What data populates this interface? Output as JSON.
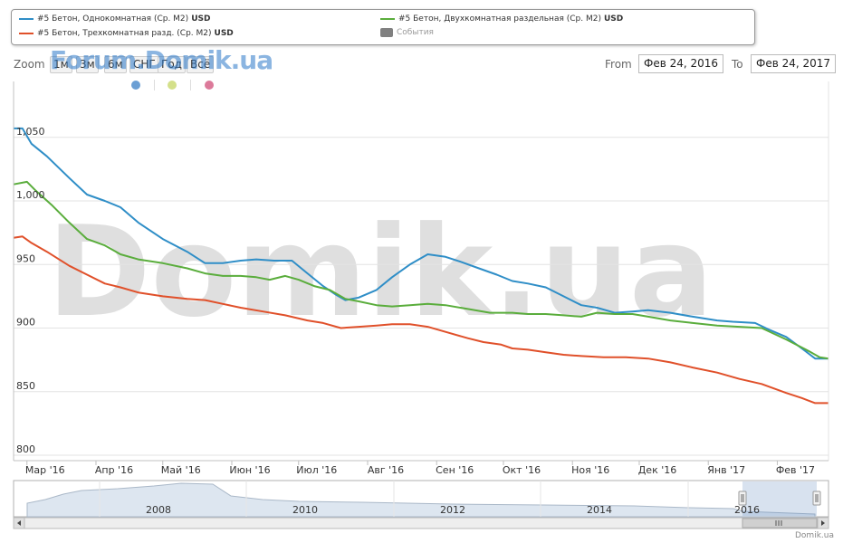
{
  "legend": {
    "items": [
      {
        "label": "#5 Бетон, Однокомнатная (Ср. М2)",
        "unit": "USD",
        "color": "#2f8ec7"
      },
      {
        "label": "#5 Бетон, Двухкомнатная раздельная (Ср. М2)",
        "unit": "USD",
        "color": "#5aad3c"
      },
      {
        "label": "#5 Бетон, Трехкомнатная разд. (Ср. М2)",
        "unit": "USD",
        "color": "#e0502a"
      },
      {
        "label": "События",
        "unit": "",
        "color": "#808080"
      }
    ]
  },
  "toolbar": {
    "zoom_label": "Zoom",
    "zoom_buttons": [
      "1м",
      "3м",
      "6м",
      "СНГ",
      "Год",
      "Всё"
    ],
    "from_label": "From",
    "from_value": "Фев 24, 2016",
    "to_label": "To",
    "to_value": "Фев 24, 2017"
  },
  "watermarks": {
    "top": "Forum.Domik.ua",
    "center": "Domik.ua"
  },
  "brand": "Domik.ua",
  "event_dot_colors": [
    "#6b9fd4",
    "#d4e08a",
    "#dc7a9a"
  ],
  "chart_data": {
    "type": "line",
    "x_labels": [
      "Мар '16",
      "Апр '16",
      "Май '16",
      "Июн '16",
      "Июл '16",
      "Авг '16",
      "Сен '16",
      "Окт '16",
      "Ноя '16",
      "Дек '16",
      "Янв '17",
      "Фев '17"
    ],
    "x_range": [
      "2016-02-24",
      "2017-02-24"
    ],
    "ylim": [
      800,
      1100
    ],
    "y_ticks": [
      800,
      850,
      900,
      950,
      1000,
      1050
    ],
    "y_tick_labels": [
      "800",
      "850",
      "900",
      "950",
      "1,000",
      "1,050"
    ],
    "grid": true,
    "series": [
      {
        "name": "#5 Бетон, Однокомнатная (Ср. М2)",
        "color": "#2f8ec7",
        "points": [
          [
            "2016-02-24",
            1057
          ],
          [
            "2016-02-28",
            1057
          ],
          [
            "2016-03-03",
            1045
          ],
          [
            "2016-03-10",
            1035
          ],
          [
            "2016-03-20",
            1018
          ],
          [
            "2016-03-28",
            1005
          ],
          [
            "2016-04-05",
            1000
          ],
          [
            "2016-04-12",
            995
          ],
          [
            "2016-04-20",
            983
          ],
          [
            "2016-05-01",
            970
          ],
          [
            "2016-05-12",
            960
          ],
          [
            "2016-05-20",
            951
          ],
          [
            "2016-05-28",
            951
          ],
          [
            "2016-06-05",
            953
          ],
          [
            "2016-06-12",
            954
          ],
          [
            "2016-06-20",
            953
          ],
          [
            "2016-06-28",
            953
          ],
          [
            "2016-07-05",
            943
          ],
          [
            "2016-07-12",
            933
          ],
          [
            "2016-07-18",
            926
          ],
          [
            "2016-07-22",
            922
          ],
          [
            "2016-07-28",
            924
          ],
          [
            "2016-08-05",
            930
          ],
          [
            "2016-08-12",
            940
          ],
          [
            "2016-08-20",
            950
          ],
          [
            "2016-08-28",
            958
          ],
          [
            "2016-09-05",
            956
          ],
          [
            "2016-09-12",
            952
          ],
          [
            "2016-09-20",
            947
          ],
          [
            "2016-09-28",
            942
          ],
          [
            "2016-10-05",
            937
          ],
          [
            "2016-10-12",
            935
          ],
          [
            "2016-10-20",
            932
          ],
          [
            "2016-10-28",
            925
          ],
          [
            "2016-11-05",
            918
          ],
          [
            "2016-11-12",
            916
          ],
          [
            "2016-11-20",
            912
          ],
          [
            "2016-11-28",
            913
          ],
          [
            "2016-12-05",
            914
          ],
          [
            "2016-12-15",
            912
          ],
          [
            "2016-12-25",
            909
          ],
          [
            "2017-01-05",
            906
          ],
          [
            "2017-01-12",
            905
          ],
          [
            "2017-01-22",
            904
          ],
          [
            "2017-01-28",
            899
          ],
          [
            "2017-02-05",
            893
          ],
          [
            "2017-02-12",
            884
          ],
          [
            "2017-02-18",
            876
          ],
          [
            "2017-02-24",
            876
          ]
        ]
      },
      {
        "name": "#5 Бетон, Двухкомнатная раздельная (Ср. М2)",
        "color": "#5aad3c",
        "points": [
          [
            "2016-02-24",
            1013
          ],
          [
            "2016-03-01",
            1015
          ],
          [
            "2016-03-05",
            1008
          ],
          [
            "2016-03-12",
            997
          ],
          [
            "2016-03-20",
            983
          ],
          [
            "2016-03-28",
            970
          ],
          [
            "2016-04-05",
            965
          ],
          [
            "2016-04-12",
            958
          ],
          [
            "2016-04-20",
            954
          ],
          [
            "2016-05-01",
            951
          ],
          [
            "2016-05-12",
            947
          ],
          [
            "2016-05-20",
            943
          ],
          [
            "2016-05-28",
            941
          ],
          [
            "2016-06-05",
            941
          ],
          [
            "2016-06-12",
            940
          ],
          [
            "2016-06-18",
            938
          ],
          [
            "2016-06-25",
            941
          ],
          [
            "2016-07-01",
            938
          ],
          [
            "2016-07-08",
            933
          ],
          [
            "2016-07-15",
            930
          ],
          [
            "2016-07-22",
            923
          ],
          [
            "2016-07-28",
            921
          ],
          [
            "2016-08-05",
            918
          ],
          [
            "2016-08-12",
            917
          ],
          [
            "2016-08-20",
            918
          ],
          [
            "2016-08-28",
            919
          ],
          [
            "2016-09-05",
            918
          ],
          [
            "2016-09-15",
            915
          ],
          [
            "2016-09-25",
            912
          ],
          [
            "2016-10-05",
            912
          ],
          [
            "2016-10-12",
            911
          ],
          [
            "2016-10-20",
            911
          ],
          [
            "2016-10-28",
            910
          ],
          [
            "2016-11-05",
            909
          ],
          [
            "2016-11-12",
            912
          ],
          [
            "2016-11-20",
            911
          ],
          [
            "2016-11-28",
            911
          ],
          [
            "2016-12-05",
            909
          ],
          [
            "2016-12-15",
            906
          ],
          [
            "2016-12-25",
            904
          ],
          [
            "2017-01-05",
            902
          ],
          [
            "2017-01-15",
            901
          ],
          [
            "2017-01-25",
            900
          ],
          [
            "2017-02-05",
            891
          ],
          [
            "2017-02-15",
            882
          ],
          [
            "2017-02-20",
            877
          ],
          [
            "2017-02-24",
            876
          ]
        ]
      },
      {
        "name": "#5 Бетон, Трехкомнатная разд. (Ср. М2)",
        "color": "#e0502a",
        "points": [
          [
            "2016-02-24",
            971
          ],
          [
            "2016-02-28",
            972
          ],
          [
            "2016-03-03",
            967
          ],
          [
            "2016-03-10",
            960
          ],
          [
            "2016-03-20",
            949
          ],
          [
            "2016-03-28",
            942
          ],
          [
            "2016-04-05",
            935
          ],
          [
            "2016-04-12",
            932
          ],
          [
            "2016-04-20",
            928
          ],
          [
            "2016-05-01",
            925
          ],
          [
            "2016-05-12",
            923
          ],
          [
            "2016-05-20",
            922
          ],
          [
            "2016-05-28",
            919
          ],
          [
            "2016-06-05",
            916
          ],
          [
            "2016-06-15",
            913
          ],
          [
            "2016-06-25",
            910
          ],
          [
            "2016-07-05",
            906
          ],
          [
            "2016-07-12",
            904
          ],
          [
            "2016-07-20",
            900
          ],
          [
            "2016-07-28",
            901
          ],
          [
            "2016-08-05",
            902
          ],
          [
            "2016-08-12",
            903
          ],
          [
            "2016-08-20",
            903
          ],
          [
            "2016-08-28",
            901
          ],
          [
            "2016-09-05",
            897
          ],
          [
            "2016-09-15",
            892
          ],
          [
            "2016-09-22",
            889
          ],
          [
            "2016-09-30",
            887
          ],
          [
            "2016-10-05",
            884
          ],
          [
            "2016-10-12",
            883
          ],
          [
            "2016-10-20",
            881
          ],
          [
            "2016-10-28",
            879
          ],
          [
            "2016-11-05",
            878
          ],
          [
            "2016-11-15",
            877
          ],
          [
            "2016-11-25",
            877
          ],
          [
            "2016-12-05",
            876
          ],
          [
            "2016-12-15",
            873
          ],
          [
            "2016-12-25",
            869
          ],
          [
            "2017-01-05",
            865
          ],
          [
            "2017-01-15",
            860
          ],
          [
            "2017-01-25",
            856
          ],
          [
            "2017-02-05",
            849
          ],
          [
            "2017-02-12",
            845
          ],
          [
            "2017-02-18",
            841
          ],
          [
            "2017-02-24",
            841
          ]
        ]
      }
    ],
    "navigator": {
      "x_labels": [
        "2008",
        "2010",
        "2012",
        "2014",
        "2016"
      ]
    }
  }
}
